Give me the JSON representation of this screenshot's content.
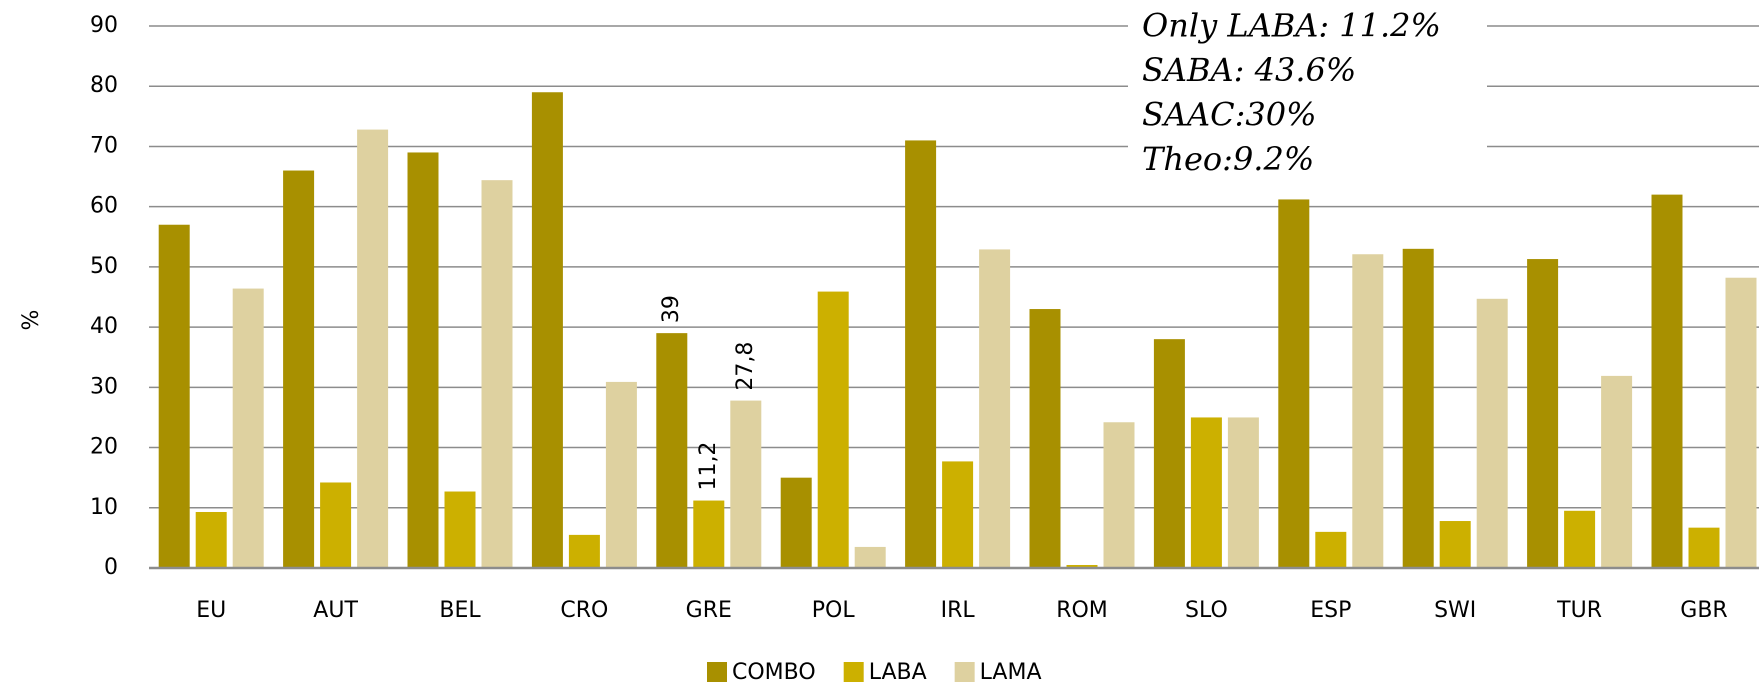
{
  "chart_data": {
    "type": "bar",
    "y_label": "%",
    "categories": [
      "EU",
      "AUT",
      "BEL",
      "CRO",
      "GRE",
      "POL",
      "IRL",
      "ROM",
      "SLO",
      "ESP",
      "SWI",
      "TUR",
      "GBR"
    ],
    "series": [
      {
        "name": "COMBO",
        "color": "#a89000",
        "values": [
          57,
          66,
          69,
          79,
          39,
          15,
          71,
          43,
          38,
          61.2,
          53,
          51.3,
          62
        ],
        "value_labels": [
          null,
          null,
          null,
          null,
          "39",
          null,
          null,
          null,
          null,
          null,
          null,
          null,
          null
        ]
      },
      {
        "name": "LABA",
        "color": "#ccb000",
        "values": [
          9.3,
          14.2,
          12.7,
          5.5,
          11.2,
          45.9,
          17.7,
          0.5,
          25,
          6,
          7.8,
          9.5,
          6.7
        ],
        "value_labels": [
          null,
          null,
          null,
          null,
          "11,2",
          null,
          null,
          null,
          null,
          null,
          null,
          null,
          null
        ]
      },
      {
        "name": "LAMA",
        "color": "#ded1a0",
        "values": [
          46.4,
          72.8,
          64.4,
          30.9,
          27.8,
          3.5,
          52.9,
          24.2,
          25,
          52.1,
          44.7,
          31.9,
          48.2
        ],
        "value_labels": [
          null,
          null,
          null,
          null,
          "27,8",
          null,
          null,
          null,
          null,
          null,
          null,
          null,
          null
        ]
      }
    ],
    "annotations": [
      "Only LABA: 11.2%",
      "SABA: 43.6%",
      "SAAC:30%",
      "Theo:9.2%"
    ],
    "ylim": [
      0,
      90
    ],
    "yticks": [
      0,
      10,
      20,
      30,
      40,
      50,
      60,
      70,
      80,
      90
    ],
    "grid": true,
    "legend": "bottom"
  }
}
